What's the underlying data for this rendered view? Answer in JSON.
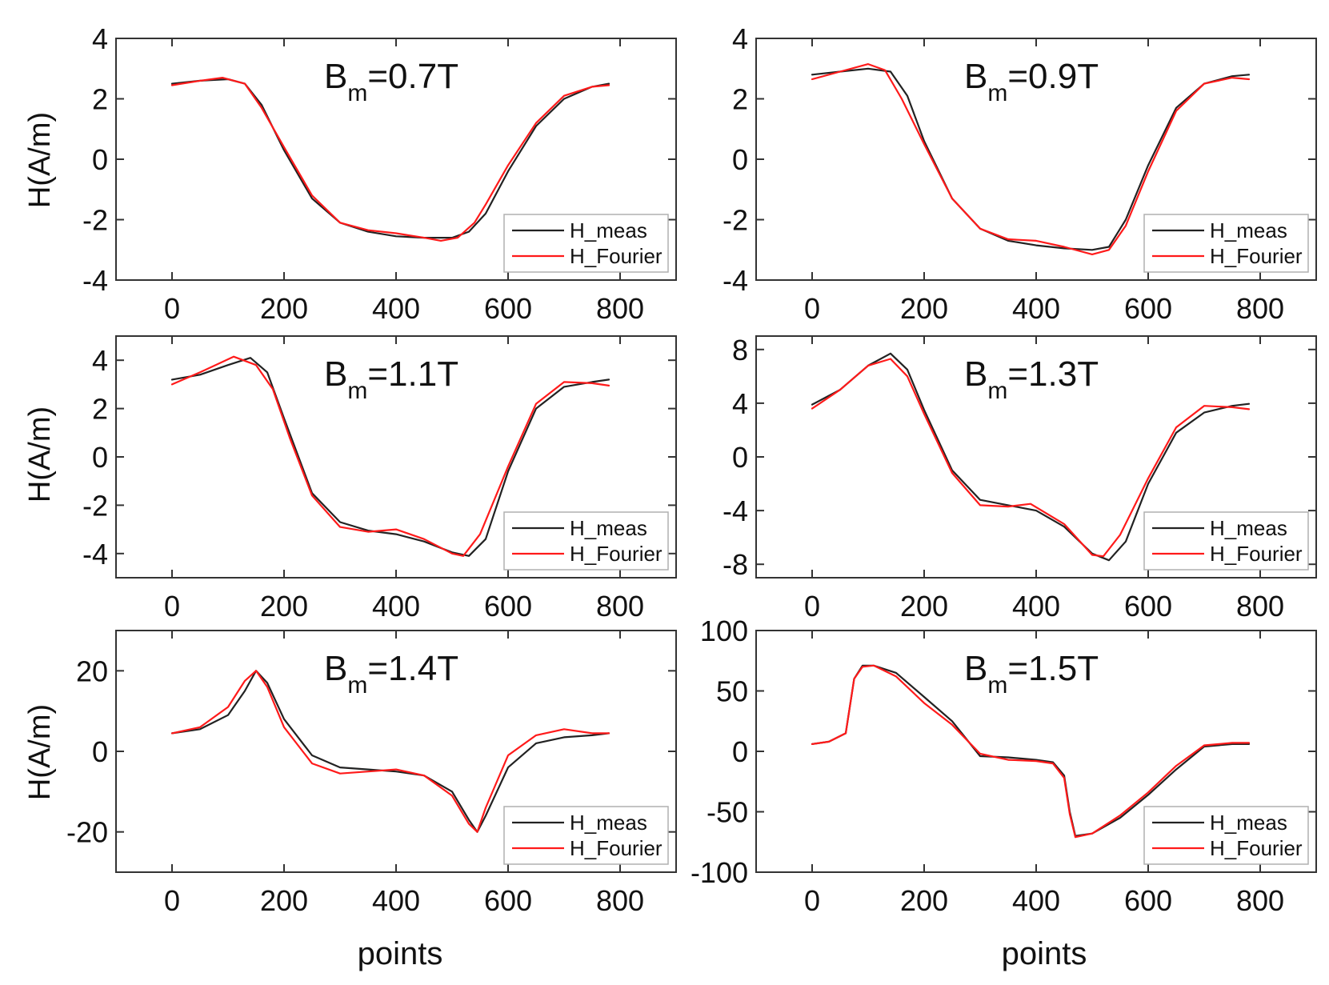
{
  "colors": {
    "meas": "#222222",
    "model": "#ff1a1a"
  },
  "axis_titles": {
    "y": "H(A/m)",
    "x": "points"
  },
  "chart_data": [
    {
      "type": "line",
      "title_main": "B",
      "title_sub": "m",
      "title_value": "=0.7T",
      "xlim": [
        -100,
        900
      ],
      "ylim": [
        -4,
        4
      ],
      "xticks": [
        0,
        200,
        400,
        600,
        800
      ],
      "xtick_labels": [
        "0",
        "200",
        "400",
        "600",
        "800"
      ],
      "yticks": [
        -4,
        -2,
        0,
        2,
        4
      ],
      "ytick_labels": [
        "-4",
        "-2",
        "0",
        "2",
        "4"
      ],
      "legend": "bottom-right",
      "series": [
        {
          "name": "H_meas",
          "x": [
            0,
            50,
            100,
            130,
            160,
            200,
            250,
            300,
            350,
            400,
            450,
            500,
            530,
            560,
            600,
            650,
            700,
            750,
            780
          ],
          "y": [
            2.5,
            2.6,
            2.65,
            2.5,
            1.8,
            0.3,
            -1.3,
            -2.1,
            -2.4,
            -2.55,
            -2.6,
            -2.6,
            -2.4,
            -1.8,
            -0.4,
            1.1,
            2.0,
            2.4,
            2.5
          ]
        },
        {
          "name": "H_Fourier",
          "x": [
            0,
            50,
            90,
            130,
            160,
            200,
            250,
            300,
            350,
            400,
            450,
            480,
            510,
            540,
            560,
            600,
            650,
            700,
            750,
            780
          ],
          "y": [
            2.45,
            2.6,
            2.7,
            2.5,
            1.7,
            0.4,
            -1.2,
            -2.1,
            -2.35,
            -2.45,
            -2.6,
            -2.7,
            -2.6,
            -2.1,
            -1.5,
            -0.2,
            1.2,
            2.1,
            2.4,
            2.45
          ]
        }
      ]
    },
    {
      "type": "line",
      "title_main": "B",
      "title_sub": "m",
      "title_value": "=0.9T",
      "xlim": [
        -100,
        900
      ],
      "ylim": [
        -4,
        4
      ],
      "xticks": [
        0,
        200,
        400,
        600,
        800
      ],
      "xtick_labels": [
        "0",
        "200",
        "400",
        "600",
        "800"
      ],
      "yticks": [
        -4,
        -2,
        0,
        2,
        4
      ],
      "ytick_labels": [
        "-4",
        "-2",
        "0",
        "2",
        "4"
      ],
      "legend": "bottom-right",
      "series": [
        {
          "name": "H_meas",
          "x": [
            0,
            50,
            100,
            140,
            170,
            200,
            250,
            300,
            350,
            400,
            450,
            500,
            530,
            560,
            600,
            650,
            700,
            750,
            780
          ],
          "y": [
            2.8,
            2.9,
            3.0,
            2.9,
            2.1,
            0.6,
            -1.3,
            -2.3,
            -2.7,
            -2.85,
            -2.95,
            -3.0,
            -2.9,
            -2.0,
            -0.2,
            1.7,
            2.5,
            2.75,
            2.8
          ]
        },
        {
          "name": "H_Fourier",
          "x": [
            0,
            50,
            100,
            130,
            160,
            200,
            250,
            300,
            350,
            400,
            450,
            500,
            530,
            560,
            600,
            650,
            700,
            750,
            780
          ],
          "y": [
            2.65,
            2.9,
            3.15,
            2.95,
            2.0,
            0.5,
            -1.3,
            -2.3,
            -2.65,
            -2.7,
            -2.9,
            -3.15,
            -3.0,
            -2.2,
            -0.4,
            1.6,
            2.5,
            2.7,
            2.65
          ]
        }
      ]
    },
    {
      "type": "line",
      "title_main": "B",
      "title_sub": "m",
      "title_value": "=1.1T",
      "xlim": [
        -100,
        900
      ],
      "ylim": [
        -5,
        5
      ],
      "xticks": [
        0,
        200,
        400,
        600,
        800
      ],
      "xtick_labels": [
        "0",
        "200",
        "400",
        "600",
        "800"
      ],
      "yticks": [
        -4,
        -2,
        0,
        2,
        4
      ],
      "ytick_labels": [
        "-4",
        "-2",
        "0",
        "2",
        "4"
      ],
      "legend": "bottom-right",
      "series": [
        {
          "name": "H_meas",
          "x": [
            0,
            50,
            100,
            140,
            170,
            200,
            250,
            300,
            350,
            400,
            450,
            500,
            530,
            560,
            600,
            650,
            700,
            750,
            780
          ],
          "y": [
            3.2,
            3.4,
            3.8,
            4.1,
            3.5,
            1.6,
            -1.5,
            -2.7,
            -3.05,
            -3.2,
            -3.5,
            -3.95,
            -4.1,
            -3.4,
            -0.6,
            2.0,
            2.9,
            3.1,
            3.2
          ]
        },
        {
          "name": "H_Fourier",
          "x": [
            0,
            50,
            110,
            150,
            180,
            210,
            250,
            300,
            350,
            400,
            450,
            500,
            520,
            550,
            600,
            650,
            700,
            750,
            780
          ],
          "y": [
            3.0,
            3.5,
            4.15,
            3.8,
            2.8,
            0.8,
            -1.6,
            -2.9,
            -3.1,
            -3.0,
            -3.4,
            -4.0,
            -4.1,
            -3.2,
            -0.4,
            2.2,
            3.1,
            3.05,
            2.95
          ]
        }
      ]
    },
    {
      "type": "line",
      "title_main": "B",
      "title_sub": "m",
      "title_value": "=1.3T",
      "xlim": [
        -100,
        900
      ],
      "ylim": [
        -9,
        9
      ],
      "xticks": [
        0,
        200,
        400,
        600,
        800
      ],
      "xtick_labels": [
        "0",
        "200",
        "400",
        "600",
        "800"
      ],
      "yticks": [
        -8,
        -4,
        0,
        4,
        8
      ],
      "ytick_labels": [
        "-8",
        "-4",
        "0",
        "4",
        "8"
      ],
      "legend": "bottom-right",
      "series": [
        {
          "name": "H_meas",
          "x": [
            0,
            50,
            100,
            140,
            170,
            200,
            250,
            300,
            350,
            400,
            450,
            500,
            530,
            560,
            600,
            650,
            700,
            750,
            780
          ],
          "y": [
            3.9,
            5.0,
            6.8,
            7.7,
            6.5,
            3.5,
            -1.0,
            -3.2,
            -3.6,
            -4.0,
            -5.2,
            -7.2,
            -7.7,
            -6.3,
            -2.0,
            1.8,
            3.3,
            3.8,
            3.95
          ]
        },
        {
          "name": "H_Fourier",
          "x": [
            0,
            50,
            100,
            140,
            170,
            200,
            250,
            300,
            350,
            390,
            450,
            500,
            520,
            550,
            600,
            650,
            700,
            750,
            780
          ],
          "y": [
            3.6,
            5.0,
            6.8,
            7.3,
            6.0,
            3.2,
            -1.2,
            -3.6,
            -3.7,
            -3.5,
            -5.0,
            -7.3,
            -7.4,
            -5.8,
            -1.6,
            2.2,
            3.8,
            3.7,
            3.55
          ]
        }
      ]
    },
    {
      "type": "line",
      "title_main": "B",
      "title_sub": "m",
      "title_value": "=1.4T",
      "xlim": [
        -100,
        900
      ],
      "ylim": [
        -30,
        30
      ],
      "xticks": [
        0,
        200,
        400,
        600,
        800
      ],
      "xtick_labels": [
        "0",
        "200",
        "400",
        "600",
        "800"
      ],
      "yticks": [
        -20,
        0,
        20
      ],
      "ytick_labels": [
        "-20",
        "0",
        "20"
      ],
      "legend": "bottom-right",
      "series": [
        {
          "name": "H_meas",
          "x": [
            0,
            50,
            100,
            130,
            150,
            170,
            200,
            250,
            300,
            350,
            400,
            450,
            500,
            530,
            545,
            560,
            600,
            650,
            700,
            750,
            780
          ],
          "y": [
            4.5,
            5.5,
            9,
            15,
            20,
            17,
            8,
            -1,
            -4,
            -4.5,
            -5,
            -6,
            -10,
            -17,
            -20,
            -16,
            -4,
            2,
            3.5,
            4,
            4.5
          ]
        },
        {
          "name": "H_Fourier",
          "x": [
            0,
            50,
            100,
            130,
            150,
            170,
            200,
            250,
            300,
            350,
            400,
            450,
            500,
            530,
            545,
            560,
            600,
            650,
            700,
            750,
            780
          ],
          "y": [
            4.5,
            6,
            11,
            17.5,
            20,
            16,
            6,
            -3,
            -5.5,
            -5,
            -4.5,
            -6,
            -11,
            -18,
            -20,
            -14,
            -1,
            4,
            5.5,
            4.5,
            4.5
          ]
        }
      ]
    },
    {
      "type": "line",
      "title_main": "B",
      "title_sub": "m",
      "title_value": "=1.5T",
      "xlim": [
        -100,
        900
      ],
      "ylim": [
        -100,
        100
      ],
      "xticks": [
        0,
        200,
        400,
        600,
        800
      ],
      "xtick_labels": [
        "0",
        "200",
        "400",
        "600",
        "800"
      ],
      "yticks": [
        -100,
        -50,
        0,
        50,
        100
      ],
      "ytick_labels": [
        "-100",
        "-50",
        "0",
        "50",
        "100"
      ],
      "legend": "bottom-right",
      "series": [
        {
          "name": "H_meas",
          "x": [
            0,
            30,
            60,
            75,
            90,
            110,
            150,
            200,
            250,
            300,
            350,
            400,
            430,
            450,
            460,
            470,
            500,
            550,
            600,
            650,
            700,
            750,
            780
          ],
          "y": [
            6,
            8,
            15,
            60,
            71,
            71,
            65,
            45,
            25,
            -4,
            -5,
            -7,
            -9,
            -20,
            -50,
            -70,
            -68,
            -55,
            -36,
            -15,
            4,
            6,
            6
          ]
        },
        {
          "name": "H_Fourier",
          "x": [
            0,
            30,
            60,
            75,
            90,
            110,
            150,
            200,
            250,
            300,
            350,
            400,
            430,
            450,
            460,
            470,
            500,
            550,
            600,
            650,
            700,
            750,
            780
          ],
          "y": [
            6,
            8,
            15,
            60,
            70,
            71,
            62,
            40,
            22,
            -2,
            -7,
            -8,
            -10,
            -22,
            -52,
            -71,
            -68,
            -53,
            -34,
            -12,
            5,
            7,
            7
          ]
        }
      ]
    }
  ]
}
